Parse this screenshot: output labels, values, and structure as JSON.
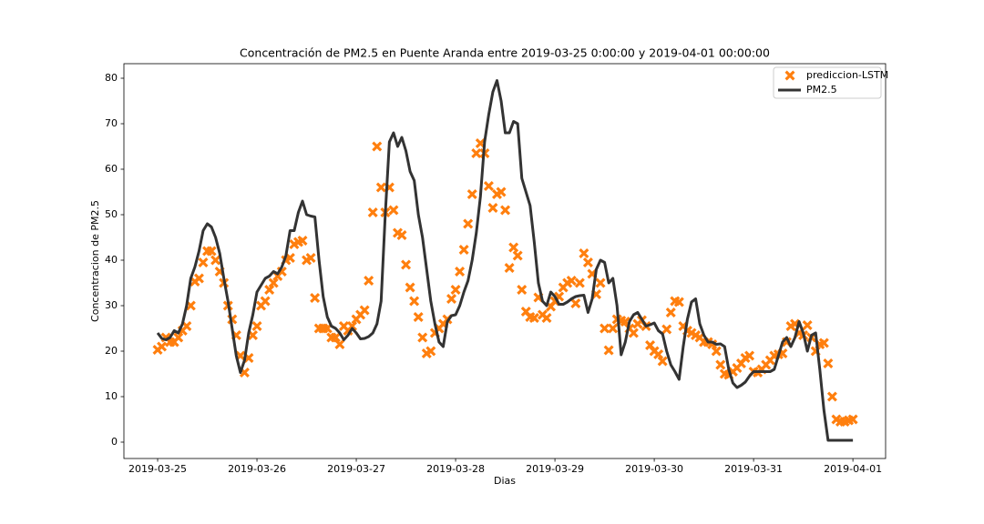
{
  "chart_data": {
    "type": "line",
    "title": "Concentración de PM2.5 en Puente Aranda entre 2019-03-25 0:00:00 y 2019-04-01 00:00:00",
    "x_label": "Dias",
    "y_label": "Concentracion de PM2.5",
    "legend": "upper right",
    "grid": false,
    "xlim": [
      -8.15,
      175.9
    ],
    "ylim": [
      -3.6,
      83.2
    ],
    "xticks": [
      {
        "value": 0,
        "label": "2019-03-25"
      },
      {
        "value": 24,
        "label": "2019-03-26"
      },
      {
        "value": 48,
        "label": "2019-03-27"
      },
      {
        "value": 72,
        "label": "2019-03-28"
      },
      {
        "value": 96,
        "label": "2019-03-29"
      },
      {
        "value": 120,
        "label": "2019-03-30"
      },
      {
        "value": 144,
        "label": "2019-03-31"
      },
      {
        "value": 168,
        "label": "2019-04-01"
      }
    ],
    "yticks": [
      0,
      10,
      20,
      30,
      40,
      50,
      60,
      70,
      80
    ],
    "x": [
      0,
      1,
      2,
      3,
      4,
      5,
      6,
      7,
      8,
      9,
      10,
      11,
      12,
      13,
      14,
      15,
      16,
      17,
      18,
      19,
      20,
      21,
      22,
      23,
      24,
      25,
      26,
      27,
      28,
      29,
      30,
      31,
      32,
      33,
      34,
      35,
      36,
      37,
      38,
      39,
      40,
      41,
      42,
      43,
      44,
      45,
      46,
      47,
      48,
      49,
      50,
      51,
      52,
      53,
      54,
      55,
      56,
      57,
      58,
      59,
      60,
      61,
      62,
      63,
      64,
      65,
      66,
      67,
      68,
      69,
      70,
      71,
      72,
      73,
      74,
      75,
      76,
      77,
      78,
      79,
      80,
      81,
      82,
      83,
      84,
      85,
      86,
      87,
      88,
      89,
      90,
      91,
      92,
      93,
      94,
      95,
      96,
      97,
      98,
      99,
      100,
      101,
      102,
      103,
      104,
      105,
      106,
      107,
      108,
      109,
      110,
      111,
      112,
      113,
      114,
      115,
      116,
      117,
      118,
      119,
      120,
      121,
      122,
      123,
      124,
      125,
      126,
      127,
      128,
      129,
      130,
      131,
      132,
      133,
      134,
      135,
      136,
      137,
      138,
      139,
      140,
      141,
      142,
      143,
      144,
      145,
      146,
      147,
      148,
      149,
      150,
      151,
      152,
      153,
      154,
      155,
      156,
      157,
      158,
      159,
      160,
      161,
      162,
      163,
      164,
      165,
      166,
      167,
      168
    ],
    "series": [
      {
        "name": "prediccion-LSTM",
        "type": "scatter",
        "color": "#ff7f0e",
        "values": [
          20.3,
          21,
          23,
          22,
          22,
          23,
          24.5,
          25.5,
          30,
          35.3,
          36,
          39.5,
          42,
          42,
          40,
          37.5,
          35,
          30,
          27,
          23.5,
          19,
          15.3,
          18.5,
          23.5,
          25.5,
          30,
          31,
          33.5,
          35,
          36.5,
          37.5,
          40,
          40.5,
          43.5,
          44,
          44.3,
          40,
          40.5,
          31.7,
          25,
          25,
          25,
          23,
          23,
          21.5,
          25.5,
          24.5,
          25.5,
          27,
          28,
          29,
          35.5,
          50.5,
          65,
          56,
          50.5,
          56,
          51,
          46,
          45.5,
          39,
          34,
          31,
          27.5,
          23,
          19.5,
          20,
          24,
          25,
          26,
          27,
          31.5,
          33.5,
          37.5,
          42.3,
          48,
          54.5,
          63.5,
          65.7,
          63.5,
          56.3,
          51.5,
          54.5,
          55,
          51,
          38.3,
          42.8,
          41,
          33.5,
          28.7,
          27.5,
          27.3,
          31.8,
          28,
          27.3,
          29.8,
          31,
          32,
          34,
          35,
          35.5,
          30.5,
          35,
          41.5,
          39.5,
          37,
          32.5,
          35,
          25,
          20.2,
          25,
          27,
          26.7,
          26.5,
          25,
          24,
          26,
          26.8,
          25.5,
          21.3,
          20,
          19.3,
          17.8,
          24.8,
          28.5,
          31,
          30.8,
          25.5,
          24.5,
          24,
          23.5,
          23,
          22,
          22,
          21.5,
          20,
          17,
          15,
          14.8,
          15.5,
          16.3,
          17.3,
          18.5,
          19,
          15.5,
          15.3,
          16,
          17,
          18,
          19,
          19.3,
          19.5,
          22,
          25.5,
          26,
          24,
          23.5,
          25.7,
          23,
          20,
          21.5,
          21.8,
          17.3,
          10,
          5,
          4.5,
          4.5,
          4.8,
          5
        ]
      },
      {
        "name": "PM2.5",
        "type": "line",
        "color": "#333333",
        "values": [
          24,
          22.8,
          22.5,
          23,
          24.5,
          24,
          26,
          30,
          36,
          38.5,
          42,
          46.5,
          48,
          47.3,
          45,
          41.5,
          36,
          31,
          25,
          19,
          15.3,
          18,
          24,
          28,
          33,
          34.5,
          36,
          36.5,
          37.5,
          37,
          38.5,
          41,
          46.5,
          46.5,
          50.5,
          53,
          50,
          49.7,
          49.5,
          40,
          32,
          27.5,
          25.5,
          25,
          24,
          22.5,
          23.5,
          25,
          24,
          22.7,
          22.8,
          23.2,
          24,
          26,
          31,
          50,
          66,
          68,
          65,
          67,
          64,
          59.5,
          57.5,
          50,
          45,
          38,
          31,
          26,
          22,
          21,
          26.5,
          27.8,
          28,
          30,
          33,
          35.5,
          40,
          46,
          54,
          66,
          72,
          77,
          79.5,
          75,
          68,
          68,
          70.5,
          70,
          58,
          55,
          52,
          44,
          35,
          31,
          30,
          33,
          32,
          30.3,
          30.3,
          30.8,
          31.5,
          32,
          32.2,
          32.3,
          28.5,
          31.5,
          38,
          40,
          39.5,
          35,
          36,
          30,
          19.2,
          22,
          26.5,
          28,
          28.5,
          27,
          25.5,
          25.8,
          26.2,
          24.5,
          23.8,
          20,
          17,
          15.5,
          13.8,
          21,
          27,
          30.8,
          31.5,
          26,
          23.5,
          22,
          22,
          21.5,
          21.6,
          21,
          16,
          13,
          12,
          12.5,
          13.2,
          14.5,
          15.5,
          15.5,
          15.5,
          15.5,
          15.5,
          16,
          19,
          22,
          23,
          21,
          23,
          26.5,
          24,
          20,
          23.5,
          24,
          16,
          7,
          0.4,
          0.4,
          0.4,
          0.4,
          0.4,
          0.4,
          0.4
        ]
      }
    ]
  }
}
